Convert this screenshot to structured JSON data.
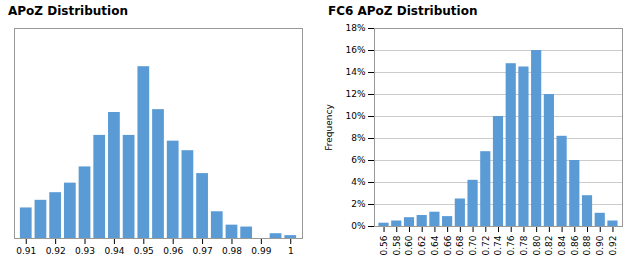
{
  "chart_data": [
    {
      "type": "bar",
      "title": "APoZ Distribution",
      "x": [
        0.91,
        0.915,
        0.92,
        0.925,
        0.93,
        0.935,
        0.94,
        0.945,
        0.95,
        0.955,
        0.96,
        0.965,
        0.97,
        0.975,
        0.98,
        0.985,
        0.99,
        0.995,
        1.0
      ],
      "values": [
        3.2,
        4.0,
        4.8,
        5.8,
        7.5,
        10.8,
        13.2,
        10.8,
        18.0,
        13.5,
        10.2,
        9.2,
        6.8,
        2.8,
        1.4,
        1.2,
        0.0,
        0.5,
        0.3
      ],
      "color": "#5B9BD5",
      "xlim": [
        0.906,
        1.004
      ],
      "ylim": [
        0,
        22
      ],
      "xticks": [
        0.91,
        0.92,
        0.93,
        0.94,
        0.95,
        0.96,
        0.97,
        0.98,
        0.99,
        1
      ],
      "tick_labels": "x"
    },
    {
      "type": "bar",
      "title": "FC6 APoZ Distribution",
      "ylabel": "Frequency",
      "x": [
        0.56,
        0.58,
        0.6,
        0.62,
        0.64,
        0.66,
        0.68,
        0.7,
        0.72,
        0.74,
        0.76,
        0.78,
        0.8,
        0.82,
        0.84,
        0.86,
        0.88,
        0.9,
        0.92
      ],
      "values": [
        0.3,
        0.5,
        0.8,
        1.0,
        1.3,
        0.9,
        2.5,
        4.2,
        6.8,
        10.0,
        14.8,
        14.5,
        16.0,
        12.0,
        8.2,
        6.0,
        2.8,
        1.2,
        0.5
      ],
      "color": "#5B9BD5",
      "xlim": [
        0.545,
        0.935
      ],
      "ylim": [
        0,
        18
      ],
      "xticks": [
        0.56,
        0.58,
        {
          "value": 0.6,
          "label": "0.60"
        },
        0.62,
        0.64,
        0.66,
        0.68,
        {
          "value": 0.7,
          "label": "0.70"
        },
        0.72,
        0.74,
        0.76,
        0.78,
        {
          "value": 0.8,
          "label": "0.80"
        },
        0.82,
        0.84,
        0.86,
        0.88,
        {
          "value": 0.9,
          "label": "0.90"
        },
        0.92
      ],
      "yticks": [
        {
          "value": 0,
          "label": "0%"
        },
        {
          "value": 2,
          "label": "2%"
        },
        {
          "value": 4,
          "label": "4%"
        },
        {
          "value": 6,
          "label": "6%"
        },
        {
          "value": 8,
          "label": "8%"
        },
        {
          "value": 10,
          "label": "10%"
        },
        {
          "value": 12,
          "label": "12%"
        },
        {
          "value": 14,
          "label": "14%"
        },
        {
          "value": 16,
          "label": "16%"
        },
        {
          "value": 18,
          "label": "18%"
        }
      ],
      "grid": true
    }
  ]
}
